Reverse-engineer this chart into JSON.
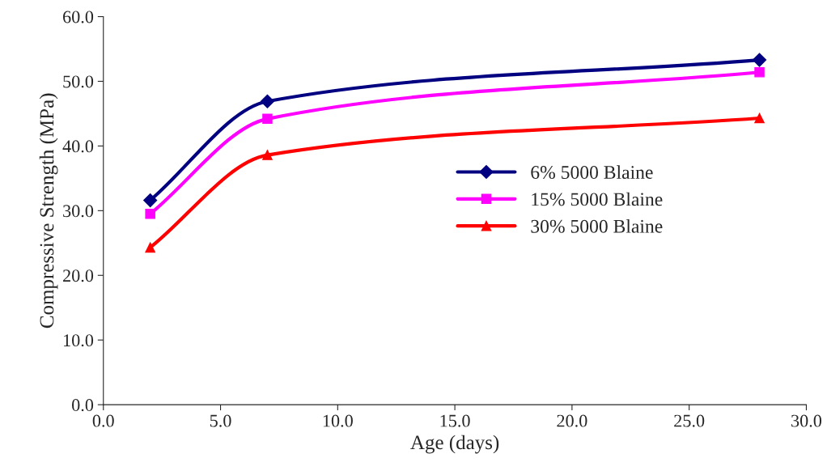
{
  "chart_data": {
    "type": "line",
    "xlabel": "Age (days)",
    "ylabel": "Compressive Strength (MPa)",
    "x": [
      2,
      7,
      28
    ],
    "series": [
      {
        "name": "6% 5000 Blaine",
        "color": "#000080",
        "values": [
          31.6,
          46.9,
          53.3
        ],
        "marker": "diamond"
      },
      {
        "name": "15% 5000 Blaine",
        "color": "#ff00ff",
        "values": [
          29.5,
          44.2,
          51.4
        ],
        "marker": "square"
      },
      {
        "name": "30% 5000 Blaine",
        "color": "#ff0000",
        "values": [
          24.3,
          38.6,
          44.3
        ],
        "marker": "triangle"
      }
    ],
    "xlim": [
      0,
      30
    ],
    "xticks": [
      {
        "value": 0,
        "label": "0.0"
      },
      {
        "value": 5,
        "label": "5.0"
      },
      {
        "value": 10,
        "label": "10.0"
      },
      {
        "value": 15,
        "label": "15.0"
      },
      {
        "value": 20,
        "label": "20.0"
      },
      {
        "value": 25,
        "label": "25.0"
      },
      {
        "value": 30,
        "label": "30.0"
      }
    ],
    "ylim": [
      0,
      60
    ],
    "yticks": [
      {
        "value": 0,
        "label": "0.0"
      },
      {
        "value": 10,
        "label": "10.0"
      },
      {
        "value": 20,
        "label": "20.0"
      },
      {
        "value": 30,
        "label": "30.0"
      },
      {
        "value": 40,
        "label": "40.0"
      },
      {
        "value": 50,
        "label": "50.0"
      },
      {
        "value": 60,
        "label": "60.0"
      }
    ],
    "grid": false,
    "legend": "center",
    "line_style": "solid"
  }
}
